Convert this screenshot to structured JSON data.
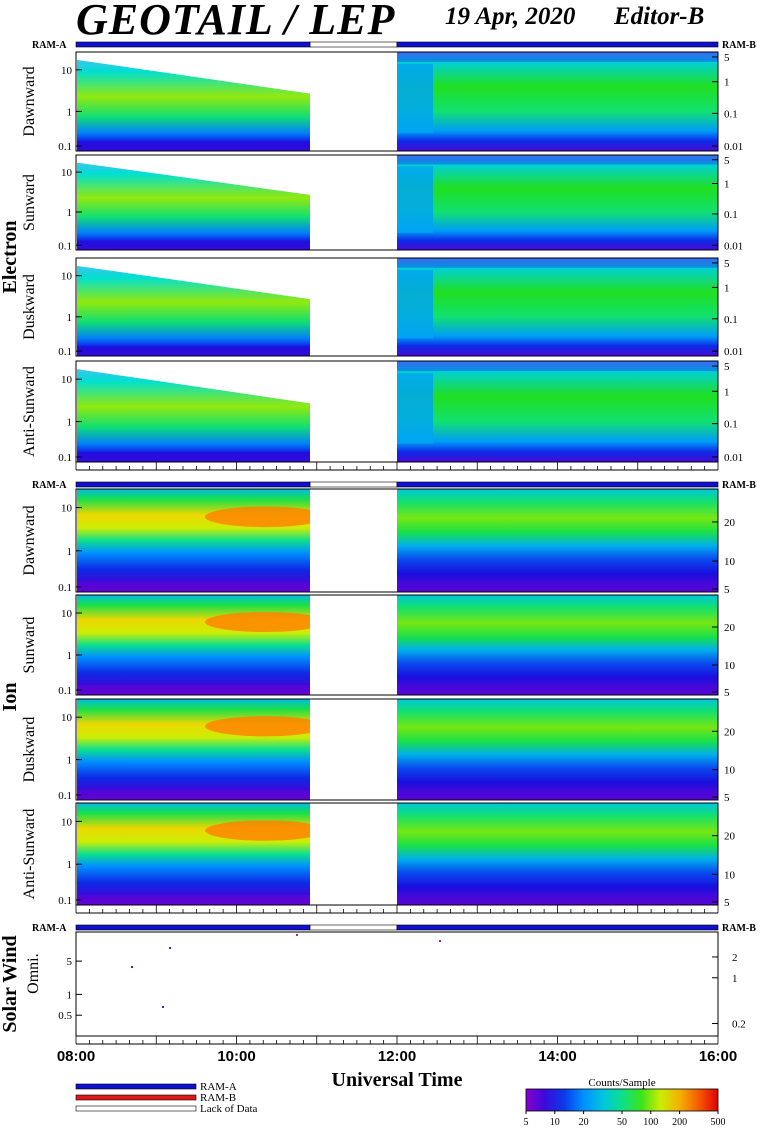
{
  "header": {
    "title": "GEOTAIL / LEP",
    "date": "19 Apr, 2020",
    "editor": "Editor-B"
  },
  "ram_labels": {
    "a": "RAM-A",
    "b": "RAM-B"
  },
  "groups": {
    "electron": "Electron",
    "ion": "Ion",
    "solar_wind": "Solar Wind"
  },
  "xaxis": {
    "label": "Universal Time",
    "ticks": [
      "08:00",
      "10:00",
      "12:00",
      "14:00",
      "16:00"
    ]
  },
  "legend": {
    "ram_a": "RAM-A",
    "ram_b": "RAM-B",
    "lack": "Lack of Data"
  },
  "colorbar": {
    "title": "Counts/Sample",
    "ticks": [
      "5",
      "10",
      "20",
      "50",
      "100",
      "200",
      "500"
    ]
  },
  "colors": {
    "ram_a": "#1010d0",
    "ram_b": "#e01818",
    "lack": "#ffffff"
  },
  "chart_data": {
    "type": "heatmap",
    "time_range": [
      "08:00",
      "16:00"
    ],
    "data_gap": [
      "10:55",
      "12:00"
    ],
    "mode_bar": [
      {
        "from": "08:00",
        "to": "10:55",
        "mode": "RAM-A"
      },
      {
        "from": "10:55",
        "to": "12:00",
        "mode": "Lack of Data"
      },
      {
        "from": "12:00",
        "to": "16:00",
        "mode": "RAM-A"
      }
    ],
    "panels": [
      {
        "group": "Electron",
        "label": "Dawnward",
        "left_ticks": [
          "10",
          "1",
          "0.1"
        ],
        "right_ticks": [
          "5",
          "1",
          "0.1",
          "0.01"
        ]
      },
      {
        "group": "Electron",
        "label": "Sunward",
        "left_ticks": [
          "10",
          "1",
          "0.1"
        ],
        "right_ticks": [
          "5",
          "1",
          "0.1",
          "0.01"
        ]
      },
      {
        "group": "Electron",
        "label": "Duskward",
        "left_ticks": [
          "10",
          "1",
          "0.1"
        ],
        "right_ticks": [
          "5",
          "1",
          "0.1",
          "0.01"
        ]
      },
      {
        "group": "Electron",
        "label": "Anti-Sunward",
        "left_ticks": [
          "10",
          "1",
          "0.1"
        ],
        "right_ticks": [
          "5",
          "1",
          "0.1",
          "0.01"
        ]
      },
      {
        "group": "Ion",
        "label": "Dawnward",
        "left_ticks": [
          "10",
          "1",
          "0.1"
        ],
        "right_ticks": [
          "20",
          "10",
          "5"
        ]
      },
      {
        "group": "Ion",
        "label": "Sunward",
        "left_ticks": [
          "10",
          "1",
          "0.1"
        ],
        "right_ticks": [
          "20",
          "10",
          "5"
        ]
      },
      {
        "group": "Ion",
        "label": "Duskward",
        "left_ticks": [
          "10",
          "1",
          "0.1"
        ],
        "right_ticks": [
          "20",
          "10",
          "5"
        ]
      },
      {
        "group": "Ion",
        "label": "Anti-Sunward",
        "left_ticks": [
          "10",
          "1",
          "0.1"
        ],
        "right_ticks": [
          "20",
          "10",
          "5"
        ]
      },
      {
        "group": "Solar Wind",
        "label": "Omni.",
        "left_ticks": [
          "5",
          "1",
          "0.5"
        ],
        "right_ticks": [
          "2",
          "1",
          "0.2"
        ]
      }
    ],
    "colorscale": {
      "min": 5,
      "max": 500,
      "log": true
    }
  }
}
